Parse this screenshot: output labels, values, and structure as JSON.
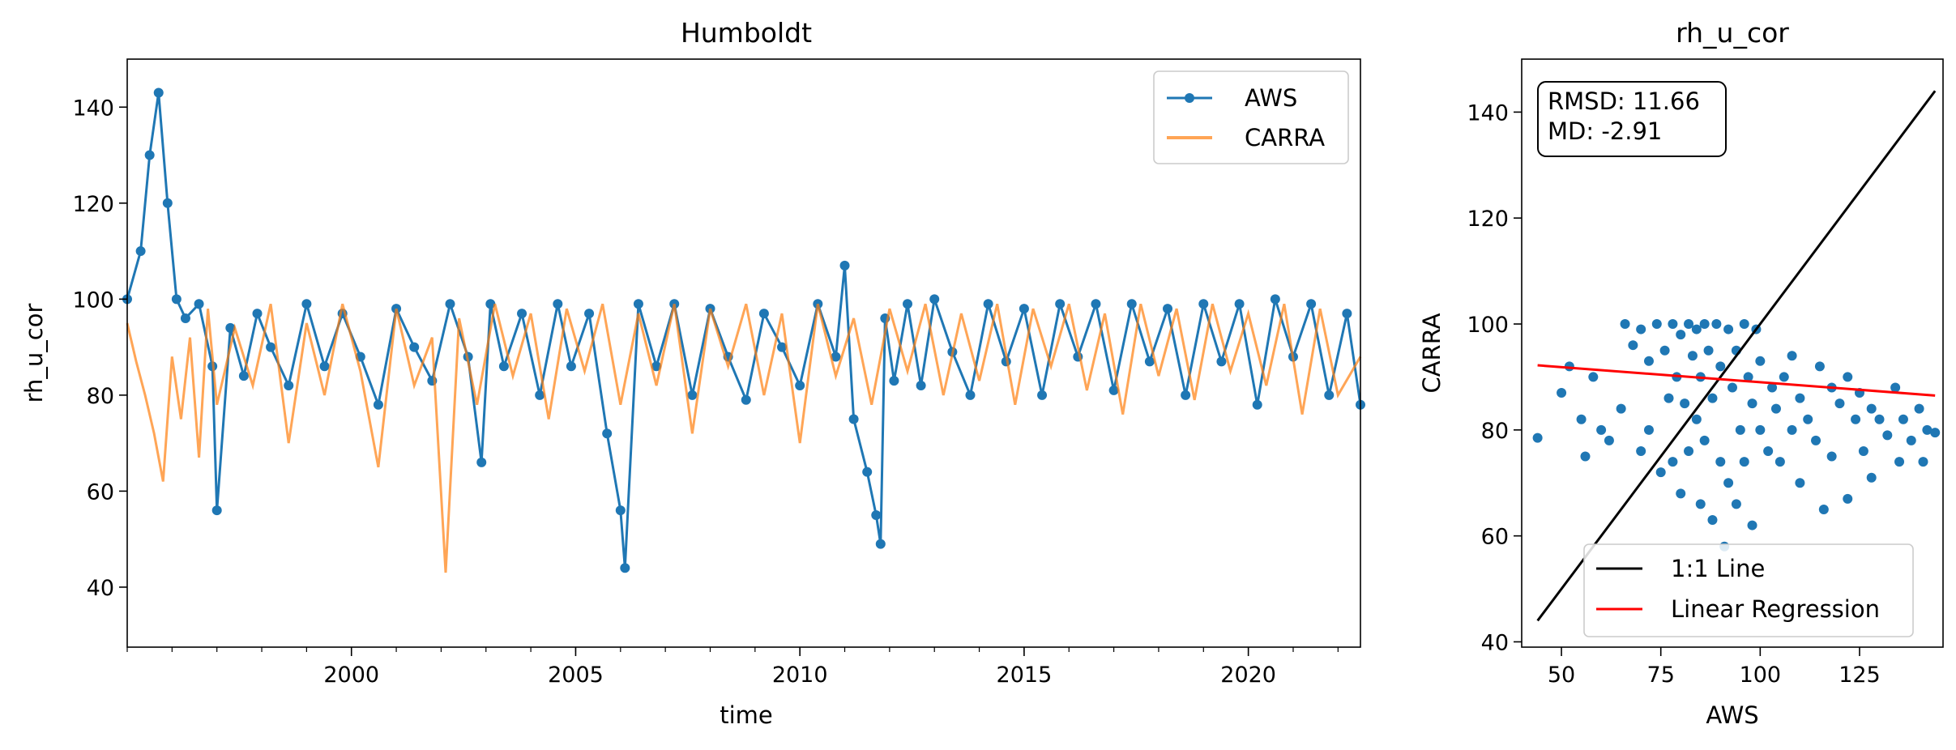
{
  "chart_data": [
    {
      "type": "line",
      "title": "Humboldt",
      "xlabel": "time",
      "ylabel": "rh_u_cor",
      "xlim": [
        1995.0,
        2022.5
      ],
      "ylim": [
        27.5,
        150
      ],
      "x_ticks": [
        2000,
        2005,
        2010,
        2015,
        2020
      ],
      "y_ticks": [
        40,
        60,
        80,
        100,
        120,
        140
      ],
      "legend": {
        "placement": "upper right",
        "entries": [
          "AWS",
          "CARRA"
        ]
      },
      "colors": {
        "AWS": "#1f77b4",
        "CARRA": "#ff7f0e"
      },
      "series": [
        {
          "name": "AWS",
          "style": "line-with-dots",
          "x": [
            1995.0,
            1995.3,
            1995.5,
            1995.7,
            1995.9,
            1996.1,
            1996.3,
            1996.6,
            1996.9,
            1997.0,
            1997.3,
            1997.6,
            1997.9,
            1998.2,
            1998.6,
            1999.0,
            1999.4,
            1999.8,
            2000.2,
            2000.6,
            2001.0,
            2001.4,
            2001.8,
            2002.2,
            2002.6,
            2002.9,
            2003.1,
            2003.4,
            2003.8,
            2004.2,
            2004.6,
            2004.9,
            2005.3,
            2005.7,
            2006.0,
            2006.1,
            2006.4,
            2006.8,
            2007.2,
            2007.6,
            2008.0,
            2008.4,
            2008.8,
            2009.2,
            2009.6,
            2010.0,
            2010.4,
            2010.8,
            2011.0,
            2011.2,
            2011.5,
            2011.7,
            2011.8,
            2011.9,
            2012.1,
            2012.4,
            2012.7,
            2013.0,
            2013.4,
            2013.8,
            2014.2,
            2014.6,
            2015.0,
            2015.4,
            2015.8,
            2016.2,
            2016.6,
            2017.0,
            2017.4,
            2017.8,
            2018.2,
            2018.6,
            2019.0,
            2019.4,
            2019.8,
            2020.2,
            2020.6,
            2021.0,
            2021.4,
            2021.8,
            2022.2,
            2022.5
          ],
          "y": [
            100,
            110,
            130,
            143,
            120,
            100,
            96,
            99,
            86,
            56,
            94,
            84,
            97,
            90,
            82,
            99,
            86,
            97,
            88,
            78,
            98,
            90,
            83,
            99,
            88,
            66,
            99,
            86,
            97,
            80,
            99,
            86,
            97,
            72,
            56,
            44,
            99,
            86,
            99,
            80,
            98,
            88,
            79,
            97,
            90,
            82,
            99,
            88,
            107,
            75,
            64,
            55,
            49,
            96,
            83,
            99,
            82,
            100,
            89,
            80,
            99,
            87,
            98,
            80,
            99,
            88,
            99,
            81,
            99,
            87,
            98,
            80,
            99,
            87,
            99,
            78,
            100,
            88,
            99,
            80,
            97,
            78
          ]
        },
        {
          "name": "CARRA",
          "style": "line",
          "x": [
            1995.0,
            1995.2,
            1995.4,
            1995.6,
            1995.8,
            1996.0,
            1996.2,
            1996.4,
            1996.6,
            1996.8,
            1997.0,
            1997.4,
            1997.8,
            1998.2,
            1998.6,
            1999.0,
            1999.4,
            1999.8,
            2000.2,
            2000.6,
            2001.0,
            2001.4,
            2001.8,
            2002.1,
            2002.4,
            2002.8,
            2003.2,
            2003.6,
            2004.0,
            2004.4,
            2004.8,
            2005.2,
            2005.6,
            2006.0,
            2006.4,
            2006.8,
            2007.2,
            2007.6,
            2008.0,
            2008.4,
            2008.8,
            2009.2,
            2009.6,
            2010.0,
            2010.4,
            2010.8,
            2011.2,
            2011.6,
            2012.0,
            2012.4,
            2012.8,
            2013.2,
            2013.6,
            2014.0,
            2014.4,
            2014.8,
            2015.2,
            2015.6,
            2016.0,
            2016.4,
            2016.8,
            2017.2,
            2017.6,
            2018.0,
            2018.4,
            2018.8,
            2019.2,
            2019.6,
            2020.0,
            2020.4,
            2020.8,
            2021.2,
            2021.6,
            2022.0,
            2022.5
          ],
          "y": [
            95,
            87,
            80,
            72,
            62,
            88,
            75,
            92,
            67,
            98,
            78,
            94,
            82,
            99,
            70,
            95,
            80,
            99,
            85,
            65,
            98,
            82,
            92,
            43,
            96,
            78,
            99,
            84,
            97,
            75,
            98,
            85,
            99,
            78,
            97,
            82,
            99,
            72,
            98,
            86,
            99,
            80,
            97,
            70,
            99,
            84,
            96,
            78,
            98,
            85,
            99,
            80,
            97,
            83,
            99,
            78,
            98,
            86,
            99,
            81,
            97,
            76,
            99,
            84,
            98,
            79,
            99,
            85,
            97,
            82,
            99,
            76,
            98,
            80,
            88
          ]
        }
      ]
    },
    {
      "type": "scatter",
      "title": "rh_u_cor",
      "xlabel": "AWS",
      "ylabel": "CARRA",
      "xlim": [
        40,
        146
      ],
      "ylim": [
        39,
        150
      ],
      "x_ticks": [
        50,
        75,
        100,
        125
      ],
      "y_ticks": [
        40,
        60,
        80,
        100,
        120,
        140
      ],
      "stats_box": [
        "RMSD: 11.66",
        "MD: -2.91"
      ],
      "legend": {
        "placement": "lower right",
        "entries": [
          "1:1 Line",
          "Linear Regression"
        ]
      },
      "colors": {
        "points": "#1f77b4",
        "one_to_one": "#000000",
        "regression": "#ff0000"
      },
      "lines": [
        {
          "name": "1:1 Line",
          "x": [
            44,
            144
          ],
          "y": [
            44,
            144
          ]
        },
        {
          "name": "Linear Regression",
          "x": [
            44,
            144
          ],
          "y": [
            92.2,
            86.5
          ]
        }
      ],
      "points": {
        "x": [
          44,
          50,
          52,
          55,
          56,
          58,
          60,
          62,
          65,
          66,
          68,
          70,
          70,
          72,
          72,
          74,
          75,
          76,
          77,
          78,
          78,
          79,
          80,
          80,
          81,
          82,
          82,
          83,
          84,
          84,
          85,
          85,
          86,
          86,
          87,
          88,
          88,
          89,
          90,
          90,
          91,
          92,
          92,
          93,
          94,
          94,
          95,
          96,
          96,
          97,
          98,
          98,
          99,
          100,
          100,
          102,
          103,
          104,
          105,
          106,
          108,
          108,
          110,
          110,
          112,
          114,
          115,
          116,
          118,
          118,
          120,
          122,
          122,
          124,
          125,
          126,
          128,
          128,
          130,
          132,
          134,
          135,
          136,
          138,
          140,
          141,
          142,
          144
        ],
        "y": [
          78.5,
          87,
          92,
          82,
          75,
          90,
          80,
          78,
          84,
          100,
          96,
          76,
          99,
          80,
          93,
          100,
          72,
          95,
          86,
          100,
          74,
          90,
          98,
          68,
          85,
          100,
          76,
          94,
          82,
          99,
          66,
          90,
          100,
          78,
          95,
          63,
          86,
          100,
          74,
          92,
          58,
          99,
          70,
          88,
          95,
          66,
          80,
          100,
          74,
          90,
          85,
          62,
          99,
          80,
          93,
          76,
          88,
          84,
          74,
          90,
          80,
          94,
          70,
          86,
          82,
          78,
          92,
          65,
          88,
          75,
          85,
          67,
          90,
          82,
          87,
          76,
          84,
          71,
          82,
          79,
          88,
          74,
          82,
          78,
          84,
          74,
          80,
          79.5
        ]
      }
    }
  ]
}
